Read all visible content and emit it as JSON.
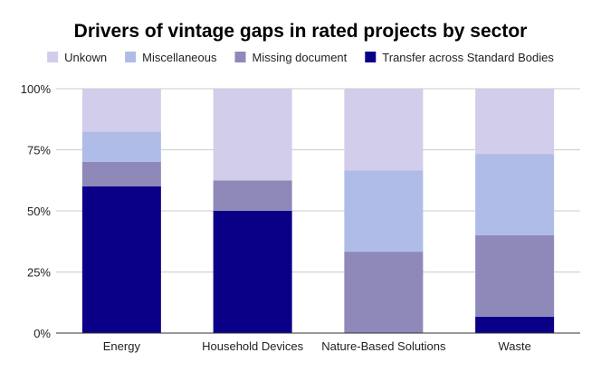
{
  "chart_data": {
    "type": "bar",
    "stacked": true,
    "title": "Drivers of vintage gaps in rated projects by sector",
    "xlabel": "",
    "ylabel": "",
    "categories": [
      "Energy",
      "Household Devices",
      "Nature-Based Solutions",
      "Waste"
    ],
    "series": [
      {
        "name": "Transfer across Standard Bodies",
        "color": "#0a0088",
        "values": [
          60,
          50,
          0,
          6.7
        ]
      },
      {
        "name": "Missing document",
        "color": "#8e89b9",
        "values": [
          10,
          12.5,
          33.3,
          33.3
        ]
      },
      {
        "name": "Miscellaneous",
        "color": "#b0bce8",
        "values": [
          12.5,
          0,
          33.3,
          33.3
        ]
      },
      {
        "name": "Unkown",
        "color": "#d2cdea",
        "values": [
          17.5,
          37.5,
          33.4,
          26.7
        ]
      }
    ],
    "legend_order": [
      "Unkown",
      "Miscellaneous",
      "Missing document",
      "Transfer across Standard Bodies"
    ],
    "ylim": [
      0,
      100
    ],
    "yticks": [
      "0%",
      "25%",
      "50%",
      "75%",
      "100%"
    ],
    "grid": true,
    "legend_position": "top"
  }
}
